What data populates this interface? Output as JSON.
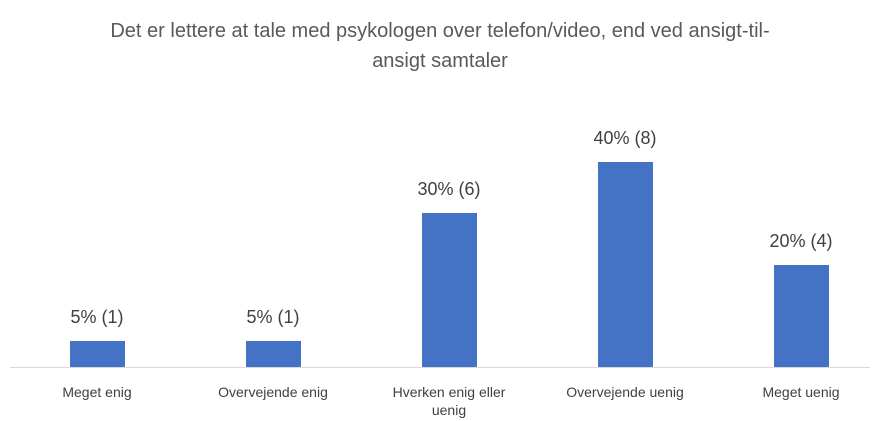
{
  "chart_data": {
    "type": "bar",
    "title": "Det er lettere at tale med psykologen over telefon/video, end ved ansigt-til-ansigt samtaler",
    "categories": [
      "Meget enig",
      "Overvejende enig",
      "Hverken enig eller uenig",
      "Overvejende uenig",
      "Meget uenig"
    ],
    "values": [
      5,
      5,
      30,
      40,
      20
    ],
    "value_labels": [
      "5% (1)",
      "5% (1)",
      "30% (6)",
      "40% (8)",
      "20% (4)"
    ],
    "color": "#4472c4"
  }
}
